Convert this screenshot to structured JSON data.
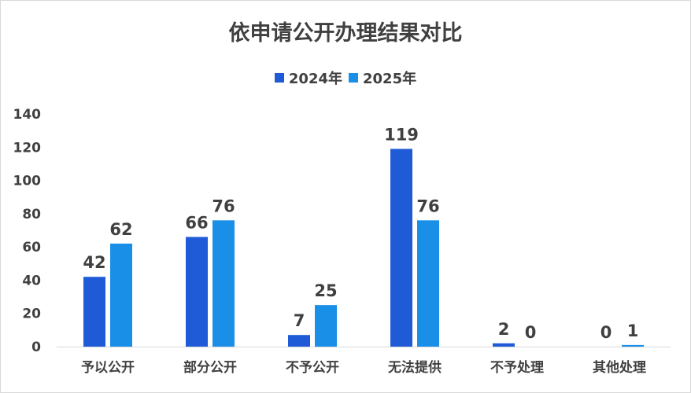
{
  "chart_data": {
    "type": "bar",
    "title": "依申请公开办理结果对比",
    "categories": [
      "予以公开",
      "部分公开",
      "不予公开",
      "无法提供",
      "不予处理",
      "其他处理"
    ],
    "series": [
      {
        "name": "2024年",
        "values": [
          42,
          66,
          7,
          119,
          2,
          0
        ],
        "color": "#1f5bd6"
      },
      {
        "name": "2025年",
        "values": [
          62,
          76,
          25,
          76,
          0,
          1
        ],
        "color": "#1a8fe8"
      }
    ],
    "ylim": [
      0,
      140
    ],
    "yticks": [
      0,
      20,
      40,
      60,
      80,
      100,
      120,
      140
    ],
    "grid": false,
    "legend_position": "top-center",
    "data_labels": true
  }
}
